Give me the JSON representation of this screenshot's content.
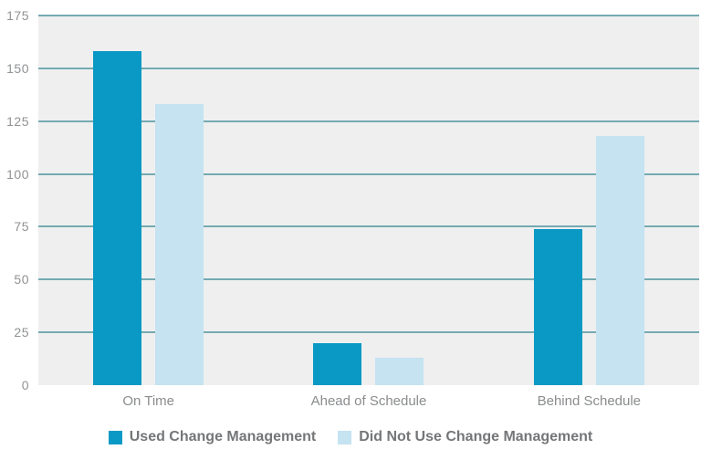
{
  "chart_data": {
    "type": "bar",
    "title": "",
    "xlabel": "",
    "ylabel": "",
    "categories": [
      "On Time",
      "Ahead of Schedule",
      "Behind Schedule"
    ],
    "series": [
      {
        "name": "Used Change Management",
        "color": "#0999c4",
        "values": [
          158,
          20,
          74
        ]
      },
      {
        "name": "Did Not Use Change Management",
        "color": "#c5e3f1",
        "values": [
          133,
          13,
          118
        ]
      }
    ],
    "ylim": [
      0,
      175
    ],
    "yticks": [
      0,
      25,
      50,
      75,
      100,
      125,
      150,
      175
    ],
    "grid": "horizontal",
    "gridline_color": "#74aab1",
    "plot_background": "#efeff0",
    "axis_label_color": "#909294",
    "category_label_color": "#8a8c8e",
    "legend_text_color": "#747678",
    "legend_position": "bottom"
  }
}
